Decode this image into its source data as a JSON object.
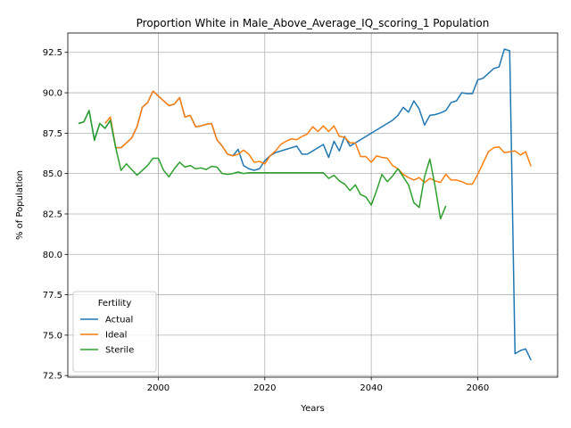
{
  "chart_data": {
    "type": "line",
    "title": "Proportion White in Male_Above_Average_IQ_scoring_1 Population",
    "xlabel": "Years",
    "ylabel": "% of Population",
    "xlim": [
      1983,
      2075
    ],
    "ylim": [
      72.4,
      93.7
    ],
    "xticks": [
      2000,
      2020,
      2040,
      2060
    ],
    "yticks": [
      72.5,
      75.0,
      77.5,
      80.0,
      82.5,
      85.0,
      87.5,
      90.0,
      92.5
    ],
    "grid": true,
    "legend": {
      "title": "Fertility",
      "placement": "lower-left"
    },
    "series": [
      {
        "name": "Actual",
        "color": "#1f77b4",
        "x": [
          1985,
          1986,
          1987,
          1988,
          1989,
          1990,
          1991,
          1992,
          1993,
          1994,
          1995,
          1996,
          1997,
          1998,
          1999,
          2000,
          2001,
          2002,
          2003,
          2004,
          2005,
          2006,
          2007,
          2008,
          2009,
          2010,
          2011,
          2012,
          2013,
          2014,
          2015,
          2016,
          2017,
          2018,
          2019,
          2020,
          2021,
          2022,
          2023,
          2024,
          2025,
          2026,
          2027,
          2028,
          2029,
          2030,
          2031,
          2032,
          2033,
          2034,
          2035,
          2036,
          2037,
          2038,
          2039,
          2040,
          2041,
          2042,
          2043,
          2044,
          2045,
          2046,
          2047,
          2048,
          2049,
          2050,
          2051,
          2052,
          2053,
          2054,
          2055,
          2056,
          2057,
          2058,
          2059,
          2060,
          2061,
          2062,
          2063,
          2064,
          2065,
          2066,
          2067,
          2068,
          2069,
          2070
        ],
        "y": [
          88.1,
          88.2,
          88.9,
          87.1,
          88.1,
          87.8,
          88.3,
          86.6,
          86.6,
          86.9,
          87.2,
          87.9,
          89.1,
          89.4,
          90.1,
          89.8,
          89.5,
          89.2,
          89.3,
          89.7,
          88.5,
          88.6,
          87.9,
          87.95,
          88.05,
          88.1,
          87.1,
          86.7,
          86.2,
          86.1,
          86.5,
          85.5,
          85.3,
          85.2,
          85.3,
          85.8,
          86.1,
          86.3,
          86.4,
          86.5,
          86.6,
          86.7,
          86.2,
          86.2,
          86.4,
          86.6,
          86.8,
          86.0,
          87.0,
          86.4,
          87.3,
          86.7,
          86.9,
          87.1,
          87.3,
          87.5,
          87.7,
          87.9,
          88.1,
          88.3,
          88.6,
          89.1,
          88.8,
          89.5,
          89.0,
          88.0,
          88.6,
          88.65,
          88.75,
          88.9,
          89.4,
          89.5,
          90.0,
          89.95,
          89.95,
          90.8,
          90.9,
          91.2,
          91.5,
          91.6,
          92.7,
          92.6,
          73.85,
          74.05,
          74.15,
          73.45
        ]
      },
      {
        "name": "Ideal",
        "color": "#ff7f0e",
        "x": [
          1990,
          1991,
          1992,
          1993,
          1994,
          1995,
          1996,
          1997,
          1998,
          1999,
          2000,
          2001,
          2002,
          2003,
          2004,
          2005,
          2006,
          2007,
          2008,
          2009,
          2010,
          2011,
          2012,
          2013,
          2014,
          2015,
          2016,
          2017,
          2018,
          2019,
          2020,
          2021,
          2022,
          2023,
          2024,
          2025,
          2026,
          2027,
          2028,
          2029,
          2030,
          2031,
          2032,
          2033,
          2034,
          2035,
          2036,
          2037,
          2038,
          2039,
          2040,
          2041,
          2042,
          2043,
          2044,
          2045,
          2046,
          2047,
          2048,
          2049,
          2050,
          2051,
          2052,
          2053,
          2054,
          2055,
          2056,
          2057,
          2058,
          2059,
          2060,
          2061,
          2062,
          2063,
          2064,
          2065,
          2066,
          2067,
          2068,
          2069,
          2070
        ],
        "y": [
          88.1,
          88.5,
          86.6,
          86.6,
          86.9,
          87.2,
          87.9,
          89.1,
          89.4,
          90.1,
          89.8,
          89.5,
          89.2,
          89.3,
          89.7,
          88.5,
          88.6,
          87.9,
          87.95,
          88.05,
          88.1,
          87.1,
          86.7,
          86.2,
          86.1,
          86.2,
          86.45,
          86.2,
          85.7,
          85.75,
          85.6,
          86.1,
          86.4,
          86.8,
          87.0,
          87.15,
          87.1,
          87.3,
          87.45,
          87.9,
          87.6,
          87.95,
          87.6,
          87.95,
          87.3,
          87.25,
          86.9,
          86.9,
          86.05,
          86.05,
          85.7,
          86.1,
          86.0,
          85.95,
          85.5,
          85.3,
          84.95,
          84.75,
          84.6,
          84.75,
          84.45,
          84.7,
          84.55,
          84.45,
          84.95,
          84.6,
          84.6,
          84.5,
          84.35,
          84.35,
          84.95,
          85.65,
          86.35,
          86.6,
          86.65,
          86.3,
          86.35,
          86.4,
          86.15,
          86.35,
          85.45
        ]
      },
      {
        "name": "Sterile",
        "color": "#2ca02c",
        "x": [
          1985,
          1986,
          1987,
          1988,
          1989,
          1990,
          1991,
          1992,
          1993,
          1994,
          1995,
          1996,
          1997,
          1998,
          1999,
          2000,
          2001,
          2002,
          2003,
          2004,
          2005,
          2006,
          2007,
          2008,
          2009,
          2010,
          2011,
          2012,
          2013,
          2014,
          2015,
          2016,
          2017,
          2018,
          2019,
          2020,
          2021,
          2022,
          2023,
          2024,
          2025,
          2026,
          2027,
          2028,
          2029,
          2030,
          2031,
          2032,
          2033,
          2034,
          2035,
          2036,
          2037,
          2038,
          2039,
          2040,
          2041,
          2042,
          2043,
          2044,
          2045,
          2046,
          2047,
          2048,
          2049,
          2050,
          2051,
          2052,
          2053,
          2054
        ],
        "y": [
          88.1,
          88.2,
          88.9,
          87.05,
          88.1,
          87.8,
          88.3,
          86.6,
          85.2,
          85.6,
          85.25,
          84.9,
          85.2,
          85.5,
          85.95,
          85.95,
          85.2,
          84.8,
          85.3,
          85.7,
          85.4,
          85.5,
          85.3,
          85.35,
          85.25,
          85.45,
          85.4,
          85.0,
          84.95,
          85.0,
          85.1,
          85.0,
          85.05,
          85.05,
          85.05,
          85.05,
          85.05,
          85.05,
          85.05,
          85.05,
          85.05,
          85.05,
          85.05,
          85.05,
          85.05,
          85.05,
          85.05,
          84.7,
          84.9,
          84.55,
          84.35,
          83.95,
          84.3,
          83.7,
          83.55,
          83.05,
          83.95,
          84.95,
          84.5,
          84.85,
          85.3,
          84.8,
          84.3,
          83.2,
          82.9,
          84.8,
          85.9,
          84.2,
          82.2,
          83.0
        ]
      }
    ]
  }
}
